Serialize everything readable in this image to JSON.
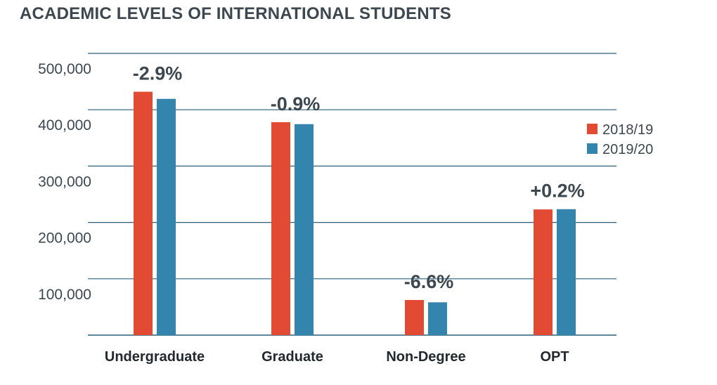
{
  "chart_data": {
    "type": "bar",
    "title": "ACADEMIC LEVELS OF INTERNATIONAL STUDENTS",
    "xlabel": "",
    "ylabel": "",
    "categories": [
      "Undergraduate",
      "Graduate",
      "Non-Degree",
      "OPT"
    ],
    "series": [
      {
        "name": "2018/19",
        "color": "#e24a33",
        "values": [
          431930,
          377943,
          62341,
          223085
        ]
      },
      {
        "name": "2019/20",
        "color": "#3385ae",
        "values": [
          419321,
          374435,
          58201,
          223539
        ]
      }
    ],
    "annotations": [
      "-2.9%",
      "-0.9%",
      "-6.6%",
      "+0.2%"
    ],
    "ylim": [
      0,
      500000
    ],
    "yticks": [
      100000,
      200000,
      300000,
      400000,
      500000
    ],
    "ytick_labels": [
      "100,000",
      "200,000",
      "300,000",
      "400,000",
      "500,000"
    ],
    "grid": true,
    "gridline_color": "#2b5f78",
    "legend_position": "right",
    "text_color": "#3d4750"
  }
}
